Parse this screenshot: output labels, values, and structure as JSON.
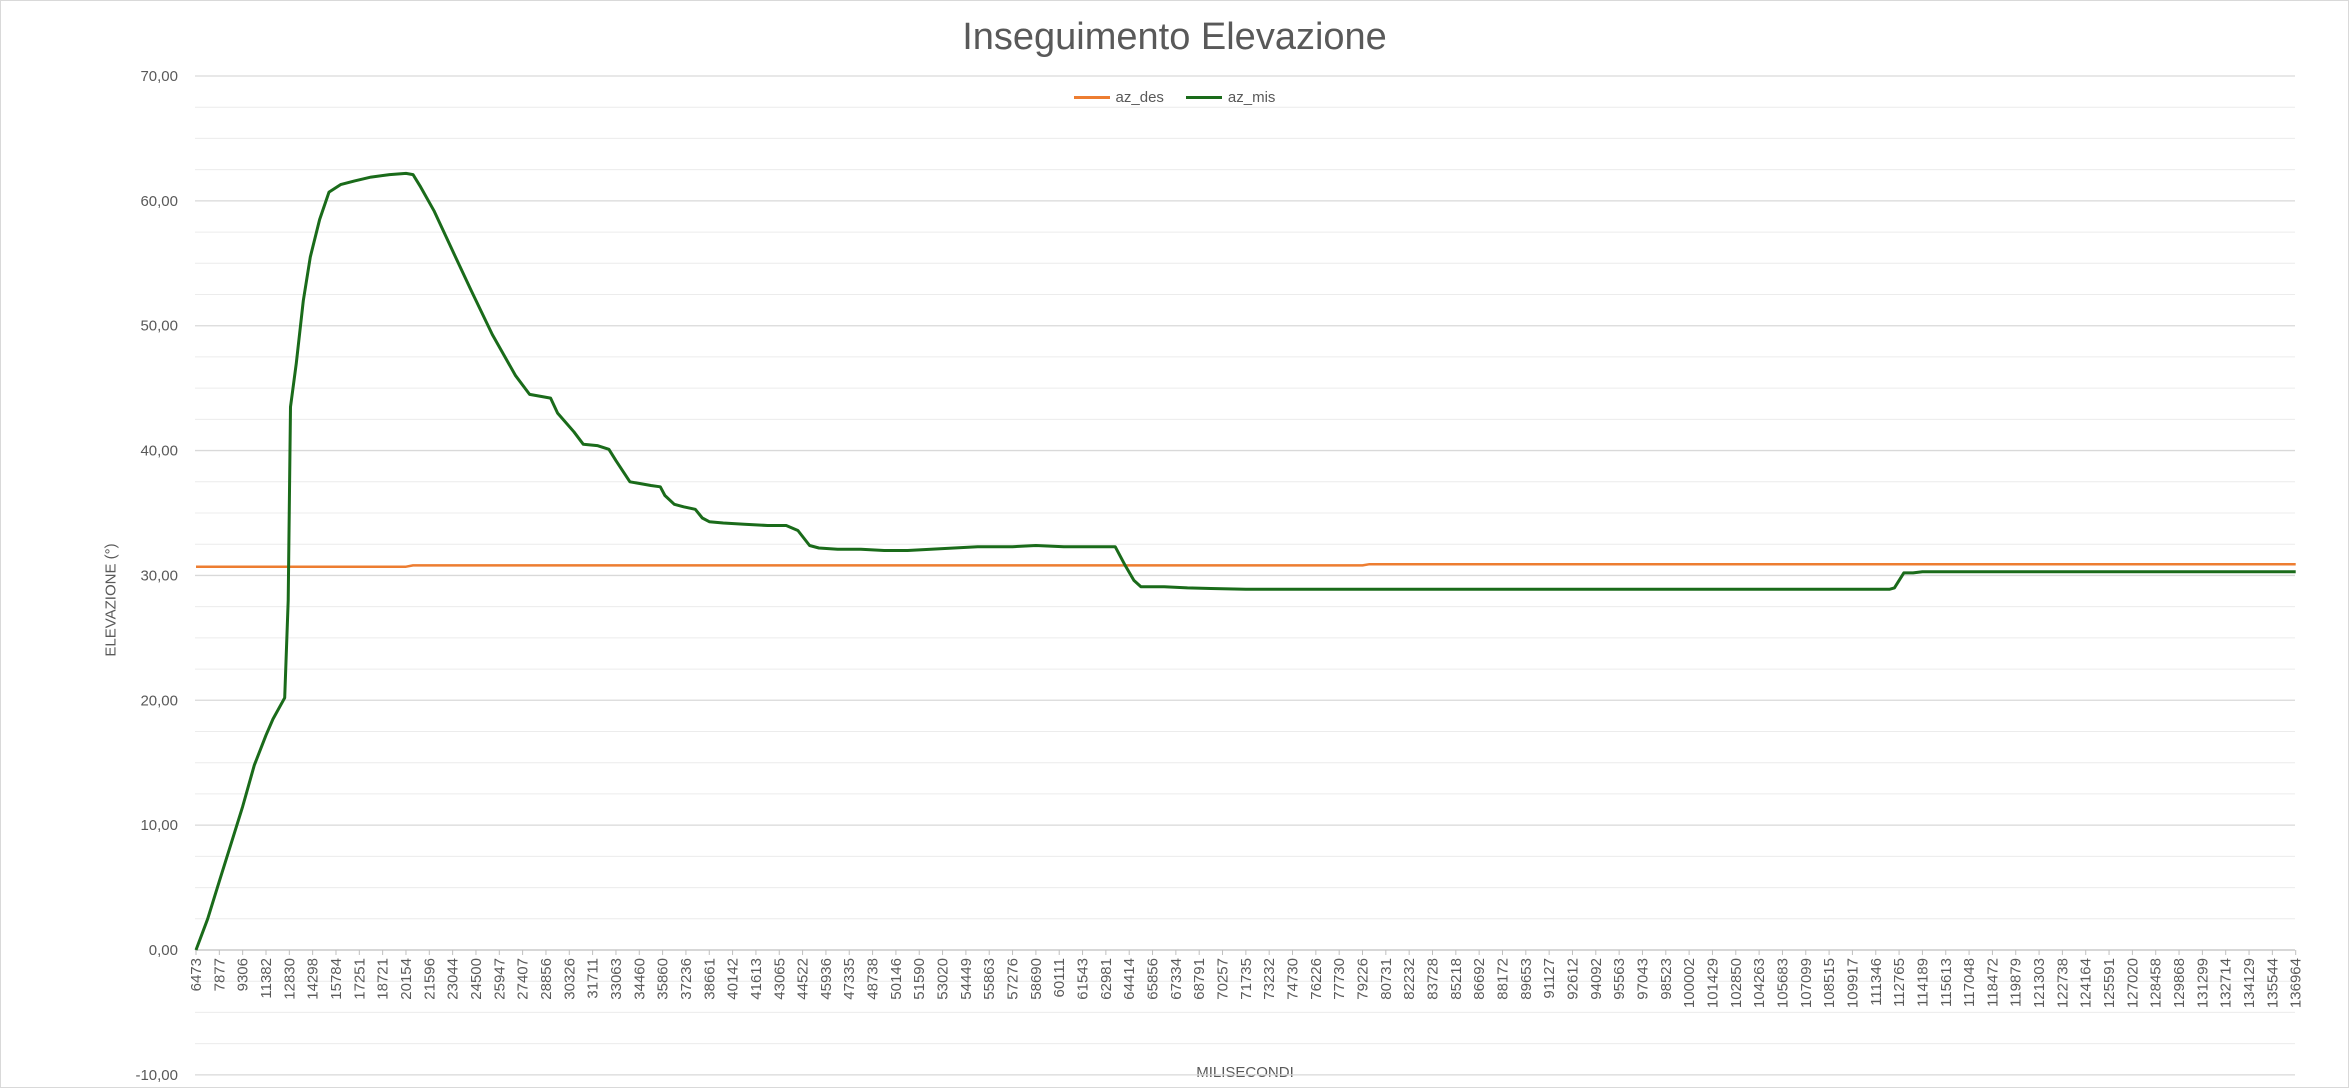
{
  "chart_data": {
    "type": "line",
    "title": "Inseguimento Elevazione",
    "xlabel": "MILISECONDI",
    "ylabel": "ELEVAZIONE (°)",
    "ylim": [
      -10,
      70
    ],
    "y_ticks": [
      "-10,00",
      "0,00",
      "10,00",
      "20,00",
      "30,00",
      "40,00",
      "50,00",
      "60,00",
      "70,00"
    ],
    "y_tick_values": [
      -10,
      0,
      10,
      20,
      30,
      40,
      50,
      60,
      70
    ],
    "grid": "horizontal major and minor",
    "legend": "top-center",
    "x_ticks": [
      "6473",
      "7877",
      "9306",
      "11382",
      "12830",
      "14298",
      "15784",
      "17251",
      "18721",
      "20154",
      "21596",
      "23044",
      "24500",
      "25947",
      "27407",
      "28856",
      "30326",
      "31711",
      "33063",
      "34460",
      "35860",
      "37236",
      "38661",
      "40142",
      "41613",
      "43065",
      "44522",
      "45936",
      "47335",
      "48738",
      "50146",
      "51590",
      "53020",
      "54449",
      "55863",
      "57276",
      "58690",
      "60111",
      "61543",
      "62981",
      "64414",
      "65856",
      "67334",
      "68791",
      "70257",
      "71735",
      "73232",
      "74730",
      "76226",
      "77730",
      "79226",
      "80731",
      "82232",
      "83728",
      "85218",
      "86692",
      "88172",
      "89653",
      "91127",
      "92612",
      "94092",
      "95563",
      "97043",
      "98523",
      "100002",
      "101429",
      "102850",
      "104263",
      "105683",
      "107099",
      "108515",
      "109917",
      "111346",
      "112765",
      "114189",
      "115613",
      "117048",
      "118472",
      "119879",
      "121303",
      "122738",
      "124164",
      "125591",
      "127020",
      "128458",
      "129868",
      "131299",
      "132714",
      "134129",
      "135544",
      "136964"
    ],
    "series": [
      {
        "name": "az_des",
        "color": "#ed7d31",
        "points": [
          [
            0,
            30.7
          ],
          [
            9,
            30.7
          ],
          [
            9.3,
            30.8
          ],
          [
            50,
            30.8
          ],
          [
            50.3,
            30.9
          ],
          [
            90,
            30.9
          ]
        ]
      },
      {
        "name": "az_mis",
        "color": "#1a6b1a",
        "points": [
          [
            0,
            0
          ],
          [
            0.5,
            2.5
          ],
          [
            1,
            5.5
          ],
          [
            1.5,
            8.5
          ],
          [
            2,
            11.5
          ],
          [
            2.5,
            14.8
          ],
          [
            3,
            17.2
          ],
          [
            3.3,
            18.5
          ],
          [
            3.8,
            20.2
          ],
          [
            3.95,
            28
          ],
          [
            4.05,
            43.5
          ],
          [
            4.3,
            47
          ],
          [
            4.6,
            52
          ],
          [
            4.9,
            55.5
          ],
          [
            5.3,
            58.5
          ],
          [
            5.7,
            60.7
          ],
          [
            6.2,
            61.3
          ],
          [
            6.8,
            61.6
          ],
          [
            7.5,
            61.9
          ],
          [
            8.3,
            62.1
          ],
          [
            9.0,
            62.2
          ],
          [
            9.3,
            62.1
          ],
          [
            9.6,
            61.2
          ],
          [
            10.2,
            59.2
          ],
          [
            11,
            56
          ],
          [
            11.8,
            52.8
          ],
          [
            12.7,
            49.3
          ],
          [
            13.7,
            46
          ],
          [
            14.3,
            44.5
          ],
          [
            14.9,
            44.3
          ],
          [
            15.2,
            44.2
          ],
          [
            15.5,
            43
          ],
          [
            16.2,
            41.5
          ],
          [
            16.6,
            40.5
          ],
          [
            17.2,
            40.4
          ],
          [
            17.7,
            40.1
          ],
          [
            18,
            39.2
          ],
          [
            18.6,
            37.5
          ],
          [
            18.9,
            37.4
          ],
          [
            19.5,
            37.2
          ],
          [
            19.9,
            37.1
          ],
          [
            20.1,
            36.4
          ],
          [
            20.5,
            35.7
          ],
          [
            20.9,
            35.5
          ],
          [
            21.4,
            35.3
          ],
          [
            21.7,
            34.6
          ],
          [
            22,
            34.3
          ],
          [
            22.6,
            34.2
          ],
          [
            23.5,
            34.1
          ],
          [
            24.5,
            34
          ],
          [
            25.3,
            34
          ],
          [
            25.8,
            33.6
          ],
          [
            26.3,
            32.4
          ],
          [
            26.7,
            32.2
          ],
          [
            27.5,
            32.1
          ],
          [
            28.5,
            32.1
          ],
          [
            29.5,
            32
          ],
          [
            30.5,
            32
          ],
          [
            31.5,
            32.1
          ],
          [
            32.5,
            32.2
          ],
          [
            33.5,
            32.3
          ],
          [
            35,
            32.3
          ],
          [
            36,
            32.4
          ],
          [
            37.2,
            32.3
          ],
          [
            38.5,
            32.3
          ],
          [
            39.4,
            32.3
          ],
          [
            39.8,
            30.9
          ],
          [
            40.2,
            29.6
          ],
          [
            40.5,
            29.1
          ],
          [
            41.5,
            29.1
          ],
          [
            42.5,
            29.0
          ],
          [
            43.5,
            28.95
          ],
          [
            45,
            28.9
          ],
          [
            50,
            28.9
          ],
          [
            55,
            28.9
          ],
          [
            60,
            28.9
          ],
          [
            65,
            28.9
          ],
          [
            70,
            28.9
          ],
          [
            71.5,
            28.9
          ],
          [
            72.6,
            28.9
          ],
          [
            72.8,
            29.0
          ],
          [
            73.2,
            30.2
          ],
          [
            73.6,
            30.2
          ],
          [
            74,
            30.3
          ],
          [
            80,
            30.3
          ],
          [
            90,
            30.3
          ]
        ]
      }
    ]
  }
}
